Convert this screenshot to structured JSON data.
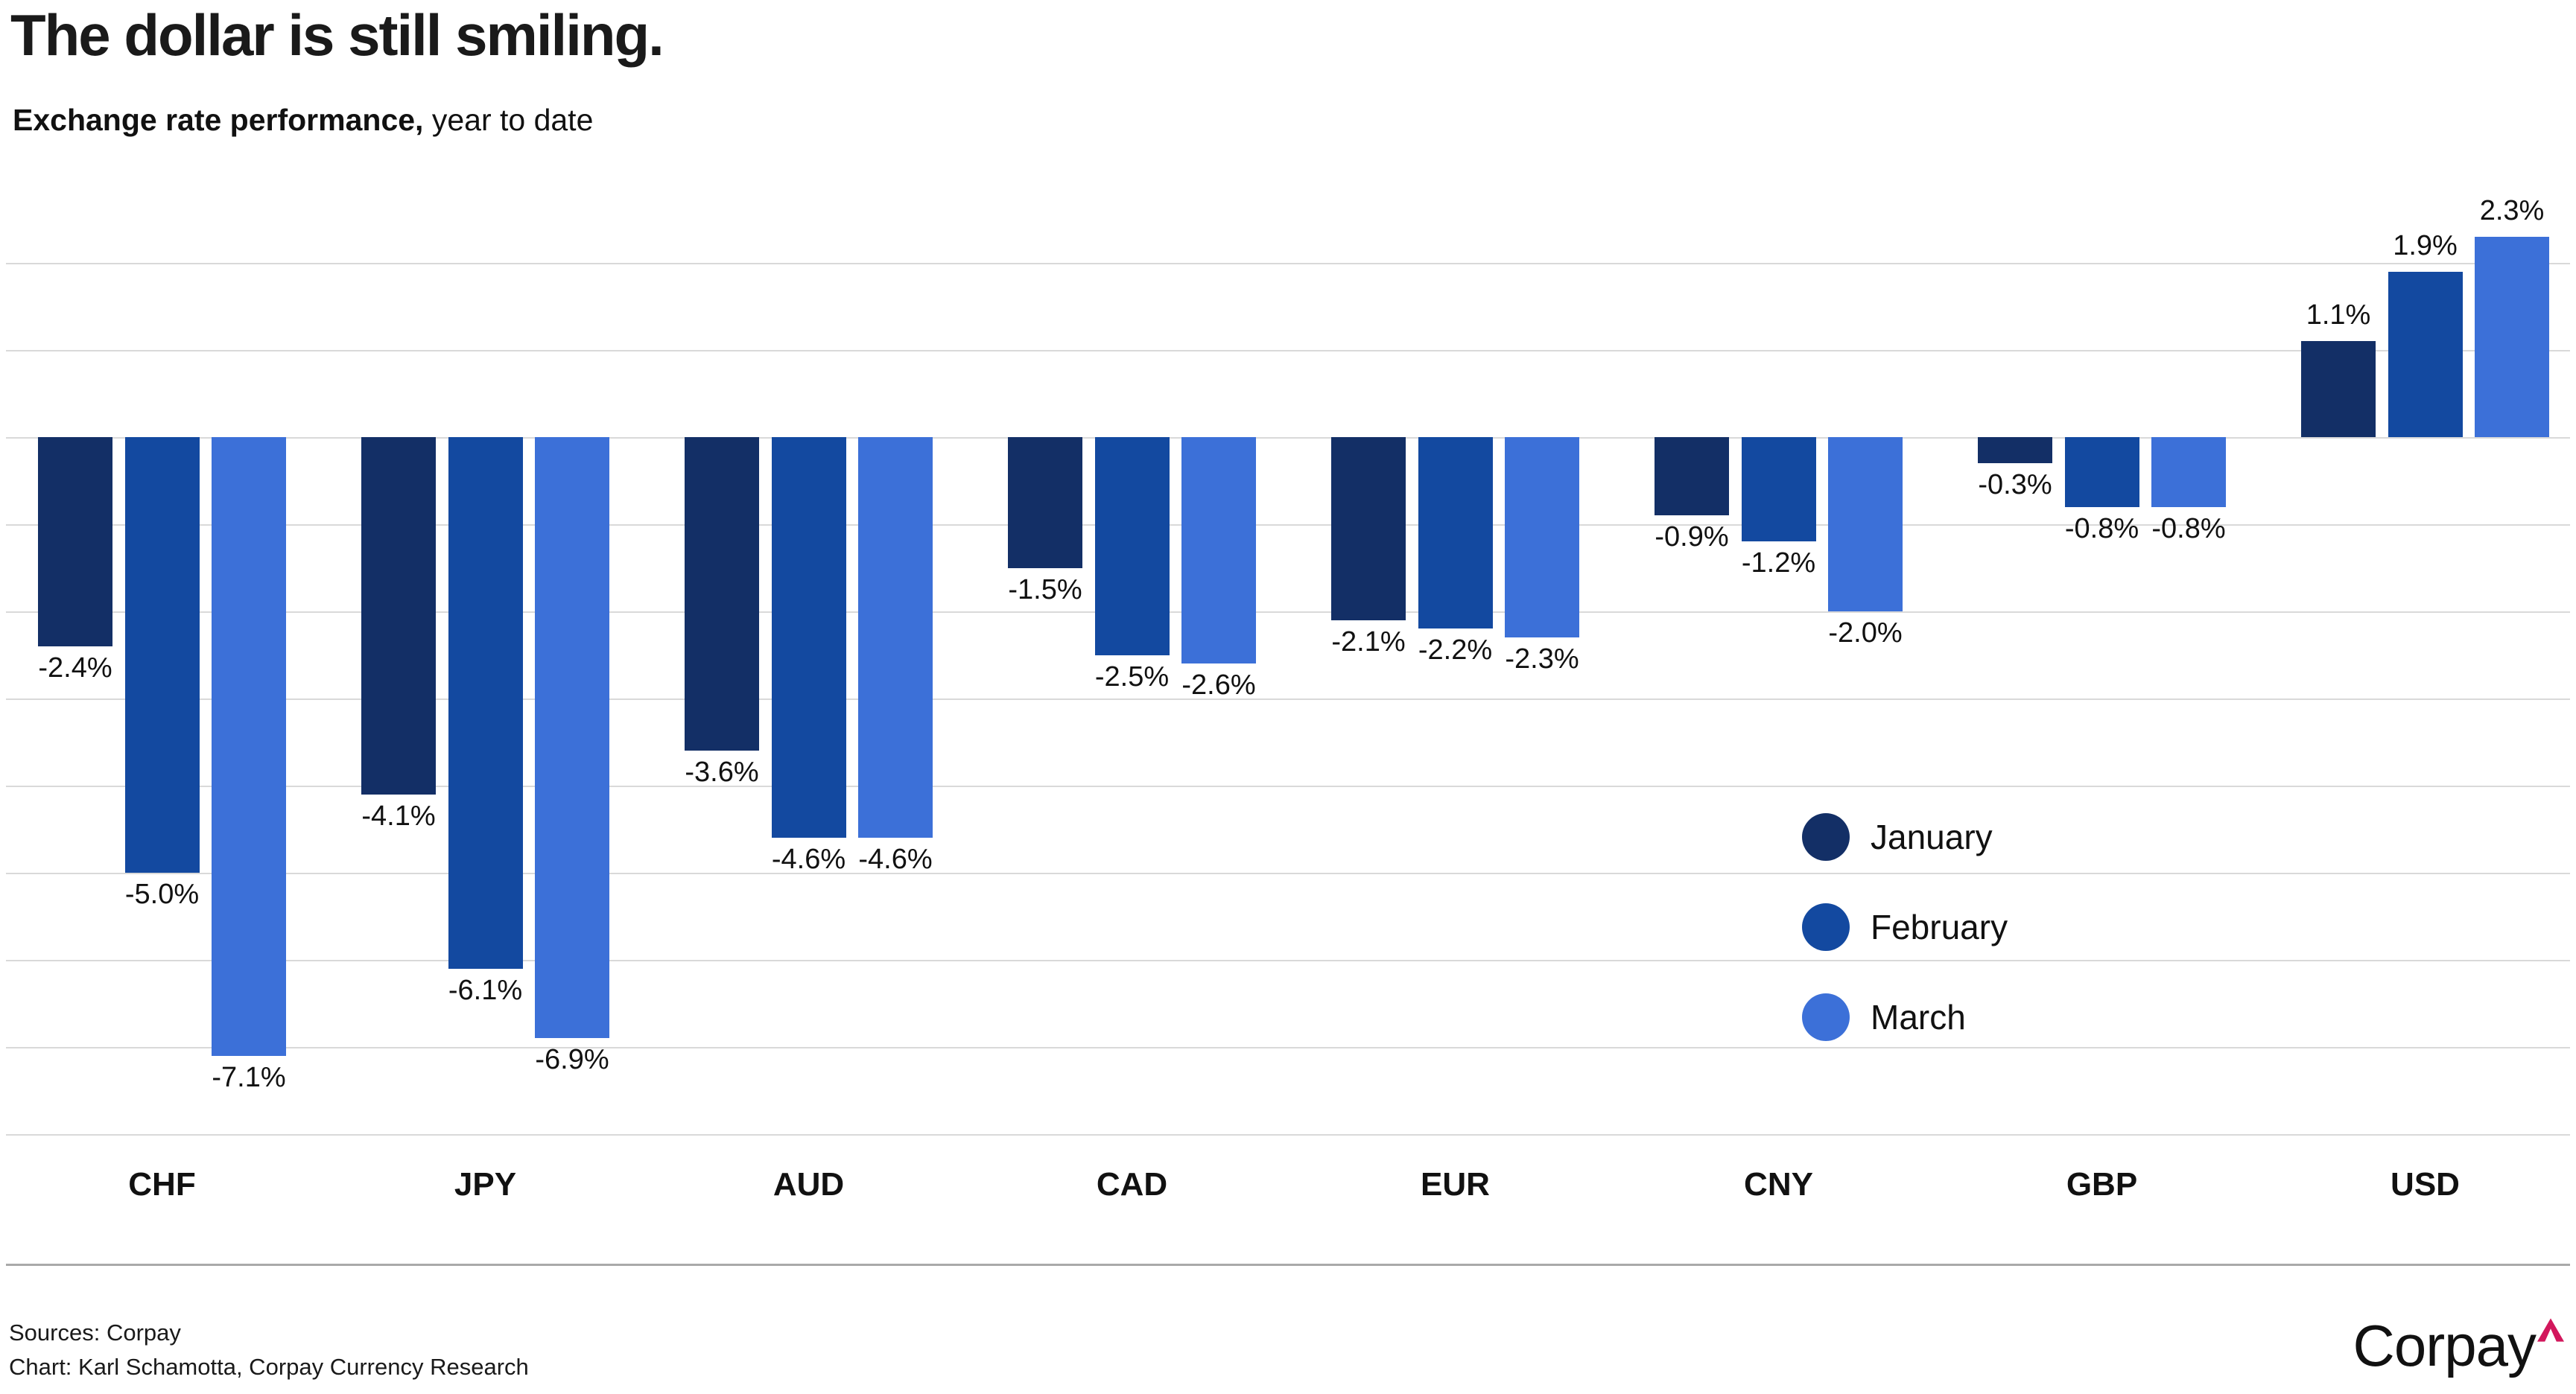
{
  "header": {
    "title": "The dollar is still smiling.",
    "subtitle_bold": "Exchange rate performance,",
    "subtitle_rest": " year to date"
  },
  "chart_data": {
    "type": "bar",
    "title": "The dollar is still smiling.",
    "subtitle": "Exchange rate performance, year to date",
    "categories": [
      "CHF",
      "JPY",
      "AUD",
      "CAD",
      "EUR",
      "CNY",
      "GBP",
      "USD"
    ],
    "series": [
      {
        "name": "January",
        "color": "#132f66",
        "values": [
          -2.4,
          -4.1,
          -3.6,
          -1.5,
          -2.1,
          -0.9,
          -0.3,
          1.1
        ]
      },
      {
        "name": "February",
        "color": "#1349a0",
        "values": [
          -5.0,
          -6.1,
          -4.6,
          -2.5,
          -2.2,
          -1.2,
          -0.8,
          1.9
        ]
      },
      {
        "name": "March",
        "color": "#3c70d8",
        "values": [
          -7.1,
          -6.9,
          -4.6,
          -2.6,
          -2.3,
          -2.0,
          -0.8,
          2.3
        ]
      }
    ],
    "value_suffix": "%",
    "value_decimals": 1,
    "ylim": [
      -8,
      2
    ],
    "gridline_step": 1,
    "grid": true,
    "legend_position": "middle-right",
    "xlabel": "",
    "ylabel": ""
  },
  "colors": {
    "gridline": "#d9d9d9",
    "separator": "#a9a9a9"
  },
  "footer": {
    "sources": "Sources: Corpay",
    "credit": "Chart: Karl Schamotta, Corpay Currency Research"
  },
  "logo": {
    "text": "Corpay",
    "caret_color": "#d2175c"
  }
}
